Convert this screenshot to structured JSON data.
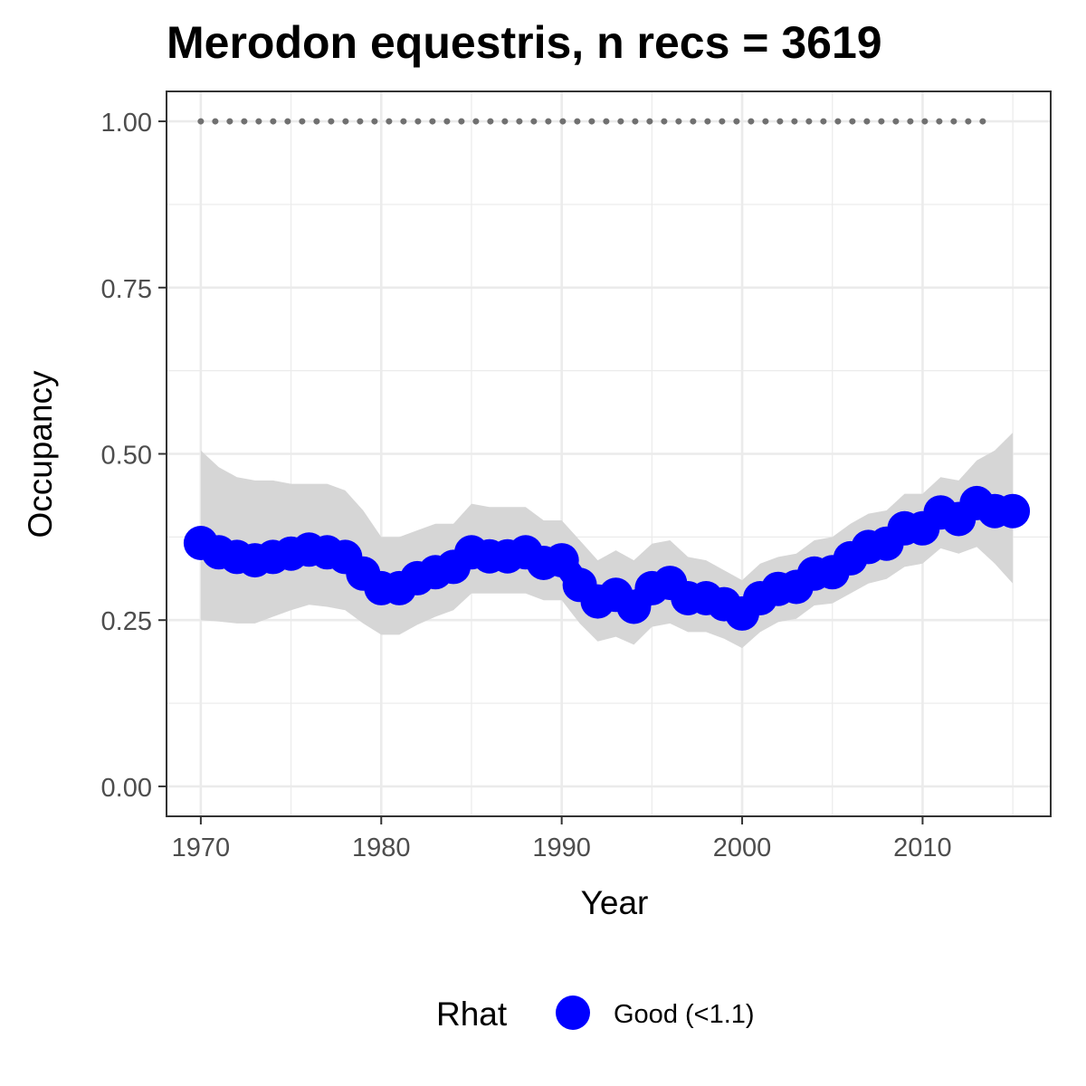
{
  "chart_data": {
    "type": "line",
    "title": "Merodon equestris, n recs = 3619",
    "xlabel": "Year",
    "ylabel": "Occupancy",
    "xlim": [
      1968.1,
      2017.1
    ],
    "ylim": [
      -0.045,
      1.045
    ],
    "x_ticks": [
      1970,
      1980,
      1990,
      2000,
      2010
    ],
    "x_tick_labels": [
      "1970",
      "1980",
      "1990",
      "2000",
      "2010"
    ],
    "y_ticks": [
      0,
      0.25,
      0.5,
      0.75,
      1
    ],
    "y_tick_labels": [
      "0.00",
      "0.25",
      "0.50",
      "0.75",
      "1.00"
    ],
    "grid": true,
    "legend": {
      "title": "Rhat",
      "position": "bottom",
      "entries": [
        {
          "label": "Good (<1.1)",
          "color": "#0000ff"
        }
      ]
    },
    "x": [
      1970,
      1971,
      1972,
      1973,
      1974,
      1975,
      1976,
      1977,
      1978,
      1979,
      1980,
      1981,
      1982,
      1983,
      1984,
      1985,
      1986,
      1987,
      1988,
      1989,
      1990,
      1991,
      1992,
      1993,
      1994,
      1995,
      1996,
      1997,
      1998,
      1999,
      2000,
      2001,
      2002,
      2003,
      2004,
      2005,
      2006,
      2007,
      2008,
      2009,
      2010,
      2011,
      2012,
      2013,
      2014,
      2015
    ],
    "series": [
      {
        "name": "Good (<1.1)",
        "color": "#0000ff",
        "values": [
          0.366,
          0.352,
          0.345,
          0.34,
          0.345,
          0.35,
          0.356,
          0.352,
          0.345,
          0.32,
          0.298,
          0.298,
          0.313,
          0.322,
          0.33,
          0.352,
          0.346,
          0.346,
          0.352,
          0.336,
          0.34,
          0.303,
          0.278,
          0.288,
          0.27,
          0.298,
          0.306,
          0.283,
          0.283,
          0.274,
          0.26,
          0.283,
          0.297,
          0.3,
          0.32,
          0.322,
          0.343,
          0.36,
          0.365,
          0.388,
          0.388,
          0.412,
          0.402,
          0.426,
          0.414,
          0.414
        ]
      }
    ],
    "ribbon": {
      "color": "#d6d6d6",
      "upper": [
        0.505,
        0.48,
        0.465,
        0.46,
        0.46,
        0.455,
        0.455,
        0.455,
        0.445,
        0.415,
        0.375,
        0.375,
        0.385,
        0.395,
        0.395,
        0.425,
        0.42,
        0.42,
        0.42,
        0.4,
        0.4,
        0.37,
        0.34,
        0.355,
        0.34,
        0.365,
        0.37,
        0.345,
        0.34,
        0.325,
        0.31,
        0.335,
        0.345,
        0.35,
        0.37,
        0.375,
        0.395,
        0.41,
        0.415,
        0.44,
        0.44,
        0.465,
        0.46,
        0.49,
        0.505,
        0.532
      ],
      "lower": [
        0.25,
        0.248,
        0.245,
        0.245,
        0.255,
        0.265,
        0.273,
        0.27,
        0.265,
        0.245,
        0.228,
        0.228,
        0.243,
        0.255,
        0.265,
        0.29,
        0.29,
        0.29,
        0.29,
        0.28,
        0.28,
        0.245,
        0.218,
        0.225,
        0.213,
        0.24,
        0.245,
        0.232,
        0.232,
        0.222,
        0.208,
        0.232,
        0.247,
        0.252,
        0.272,
        0.275,
        0.29,
        0.305,
        0.312,
        0.33,
        0.335,
        0.358,
        0.35,
        0.36,
        0.335,
        0.305
      ]
    },
    "reference_line": {
      "y": 1.0,
      "color": "#707070",
      "style": "dotted"
    }
  }
}
